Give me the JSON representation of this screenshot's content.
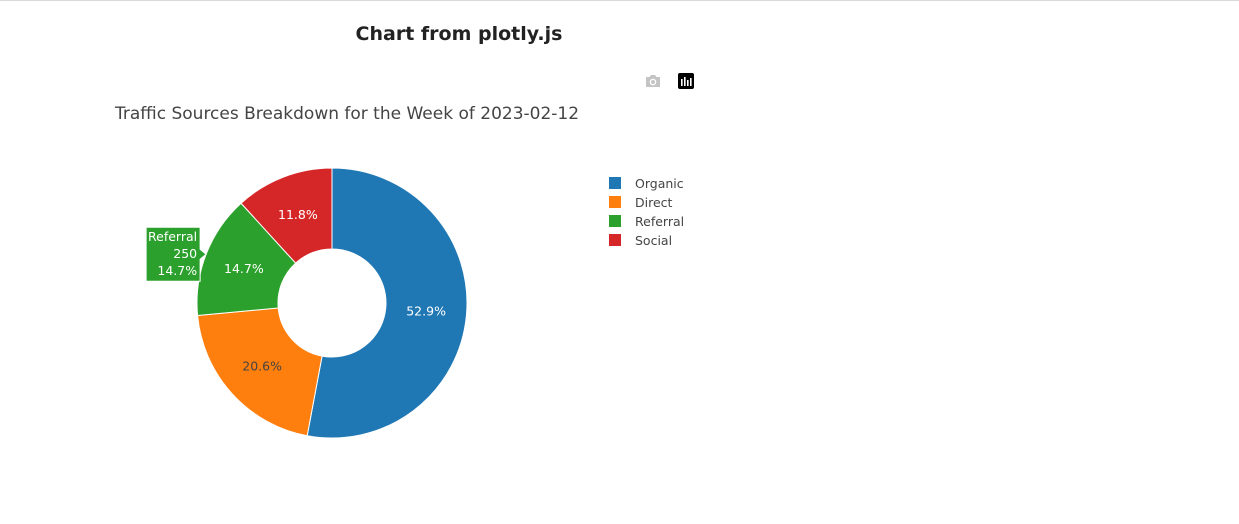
{
  "page": {
    "heading": "Chart from plotly.js"
  },
  "modebar": {
    "icons": [
      "camera-icon",
      "plotly-logo-icon"
    ],
    "camera_color": "#c4c4c4",
    "logo_color": "#000000"
  },
  "chart_data": {
    "type": "pie",
    "hole": 0.4,
    "title": "Traffic Sources Breakdown for the Week of 2023-02-12",
    "labels": [
      "Organic",
      "Direct",
      "Referral",
      "Social"
    ],
    "values": [
      900,
      350,
      250,
      200
    ],
    "percent_labels": [
      "52.9%",
      "20.6%",
      "14.7%",
      "11.8%"
    ],
    "colors": [
      "#1f77b4",
      "#ff7f0e",
      "#2ca02c",
      "#d62728"
    ],
    "legend": {
      "position": "right",
      "items": [
        "Organic",
        "Direct",
        "Referral",
        "Social"
      ]
    },
    "hover": {
      "label": "Referral",
      "value": "250",
      "percent": "14.7%"
    }
  }
}
